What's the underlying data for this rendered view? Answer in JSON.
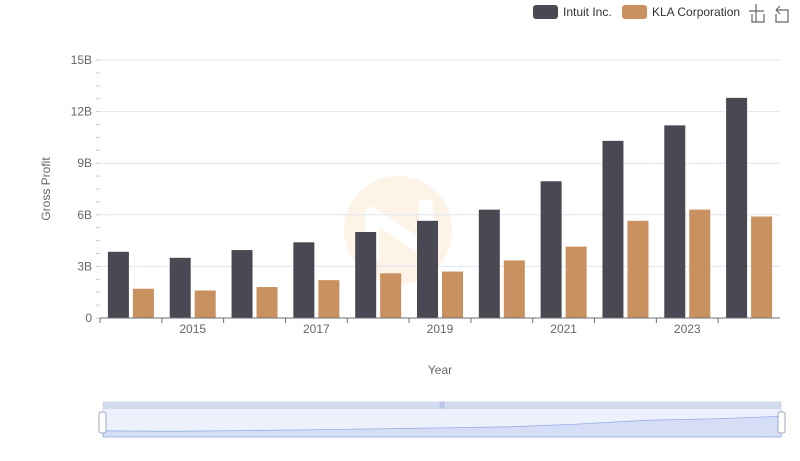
{
  "toolbox": {
    "zoom_icon": "zoom-icon",
    "restore_icon": "restore-icon"
  },
  "chart_data": {
    "type": "bar",
    "categories": [
      "2014",
      "2015",
      "2016",
      "2017",
      "2018",
      "2019",
      "2020",
      "2021",
      "2022",
      "2023",
      "2024"
    ],
    "series": [
      {
        "name": "Intuit Inc.",
        "color": "#4a4953",
        "values": [
          3.85,
          3.5,
          3.95,
          4.4,
          5.0,
          5.65,
          6.3,
          7.95,
          10.3,
          11.2,
          12.8
        ]
      },
      {
        "name": "KLA Corporation",
        "color": "#c9915f",
        "values": [
          1.7,
          1.6,
          1.8,
          2.2,
          2.6,
          2.7,
          3.35,
          4.15,
          5.65,
          6.3,
          5.9
        ]
      }
    ],
    "xlabel": "Year",
    "ylabel": "Gross Profit",
    "x_tick_labels": [
      "2015",
      "2017",
      "2019",
      "2021",
      "2023"
    ],
    "y_ticks": [
      0,
      3,
      6,
      9,
      12,
      15
    ],
    "y_tick_labels": [
      "0",
      "3B",
      "6B",
      "9B",
      "12B",
      "15B"
    ],
    "ylim": [
      0,
      15
    ],
    "grid": true,
    "legend_position": "top-right"
  }
}
